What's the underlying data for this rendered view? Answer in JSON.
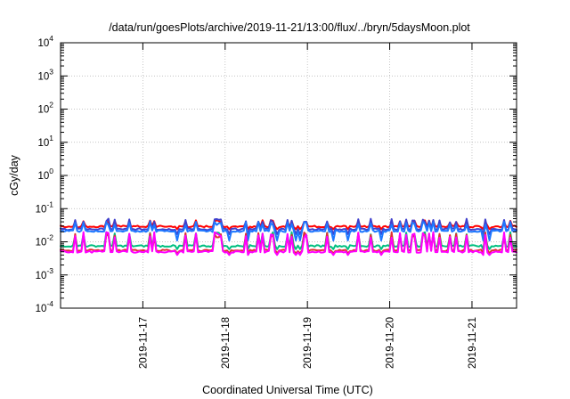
{
  "chart_data": {
    "type": "line",
    "title": "/data/run/goesPlots/archive/2019-11-21/13:00/flux/../bryn/5daysMoon.plot",
    "xlabel": "Coordinated Universal Time (UTC)",
    "ylabel": "cGy/day",
    "yscale": "log",
    "ylim_exp": [
      -4,
      4
    ],
    "y_ticks": [
      {
        "base": "10",
        "exp": "-4"
      },
      {
        "base": "10",
        "exp": "-3"
      },
      {
        "base": "10",
        "exp": "-2"
      },
      {
        "base": "10",
        "exp": "-1"
      },
      {
        "base": "10",
        "exp": "0"
      },
      {
        "base": "10",
        "exp": "1"
      },
      {
        "base": "10",
        "exp": "2"
      },
      {
        "base": "10",
        "exp": "3"
      },
      {
        "base": "10",
        "exp": "4"
      }
    ],
    "x_start": "2019-11-16T00:00",
    "x_end": "2019-11-21T13:00",
    "x_ticks": [
      "2019-11-17",
      "2019-11-18",
      "2019-11-19",
      "2019-11-20",
      "2019-11-21"
    ],
    "grid": true,
    "colors": {
      "red": "#ff0000",
      "blue_dark": "#4040cc",
      "blue": "#1e78ff",
      "green": "#00c080",
      "red_low": "#e03030",
      "magenta": "#ff00ff"
    },
    "series": [
      {
        "color_key": "red",
        "base": 0.029,
        "spike_to": 0.045,
        "dip_to": 0.024
      },
      {
        "color_key": "blue_dark",
        "base": 0.024,
        "spike_to": 0.05,
        "dip_to": 0.017
      },
      {
        "color_key": "blue",
        "base": 0.021,
        "spike_to": 0.04,
        "dip_to": 0.011
      },
      {
        "color_key": "green",
        "base": 0.0075,
        "spike_to": 0.02,
        "dip_to": 0.006
      },
      {
        "color_key": "red_low",
        "base": 0.0055,
        "spike_to": 0.02,
        "dip_to": 0.0045
      },
      {
        "color_key": "magenta",
        "base": 0.005,
        "spike_to": 0.02,
        "dip_to": 0.004
      }
    ]
  }
}
